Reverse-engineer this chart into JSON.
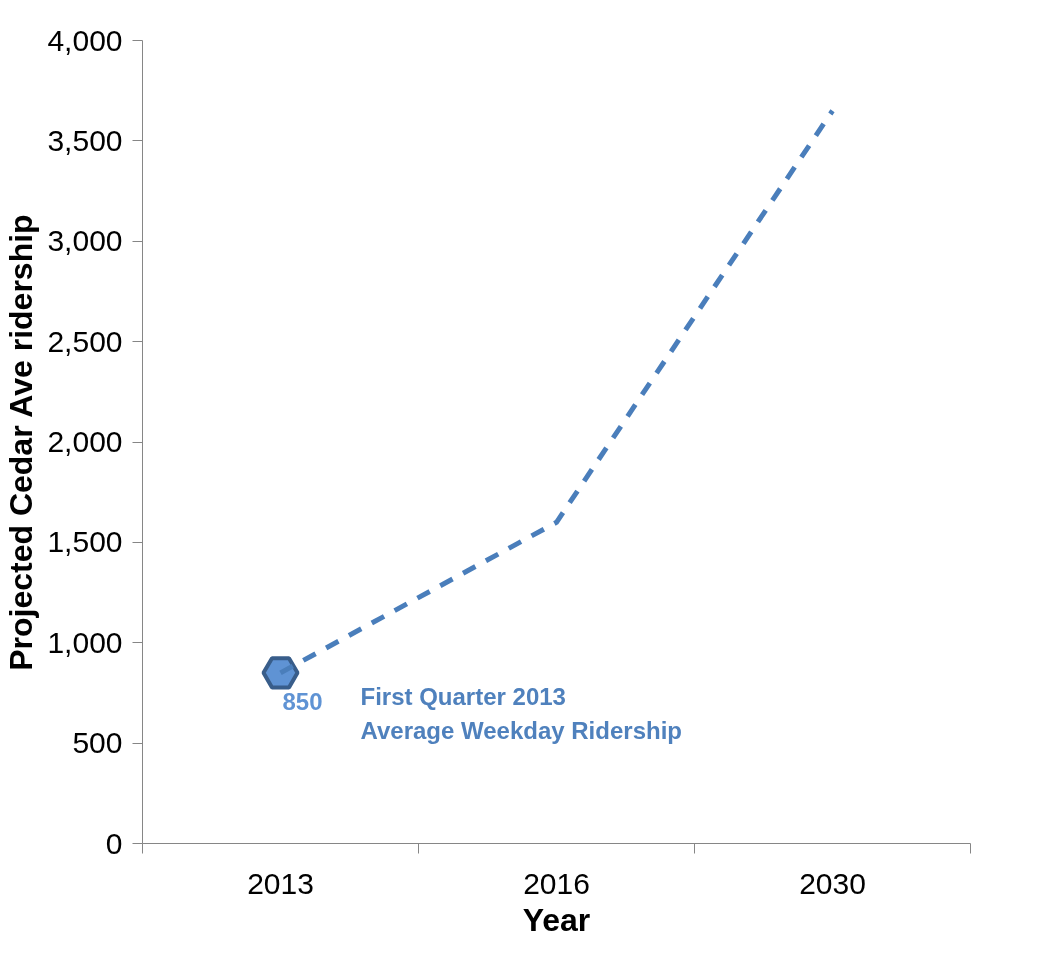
{
  "chart_data": {
    "type": "line",
    "ylabel": "Projected Cedar Ave ridership",
    "xlabel": "Year",
    "categories": [
      "2013",
      "2016",
      "2030"
    ],
    "series": [
      {
        "type": "scatter",
        "color": "#5f93d4",
        "values": [
          850,
          null,
          null
        ],
        "marker": "circle",
        "value_labels": [
          "850",
          null,
          null
        ]
      },
      {
        "color": "#4a7ebb",
        "values": [
          850,
          1600,
          3650
        ],
        "line_style": "dashed",
        "marker": "none"
      }
    ],
    "ylim": [
      0,
      4000
    ],
    "yticks": [
      {
        "value": 0,
        "label": "0"
      },
      {
        "value": 500,
        "label": "500"
      },
      {
        "value": 1000,
        "label": "1,000"
      },
      {
        "value": 1500,
        "label": "1,500"
      },
      {
        "value": 2000,
        "label": "2,000"
      },
      {
        "value": 2500,
        "label": "2,500"
      },
      {
        "value": 3000,
        "label": "3,000"
      },
      {
        "value": 3500,
        "label": "3,500"
      },
      {
        "value": 4000,
        "label": "4,000"
      }
    ],
    "grid": false,
    "annotations": [
      "First Quarter 2013\nAverage Weekday Ridership"
    ]
  }
}
